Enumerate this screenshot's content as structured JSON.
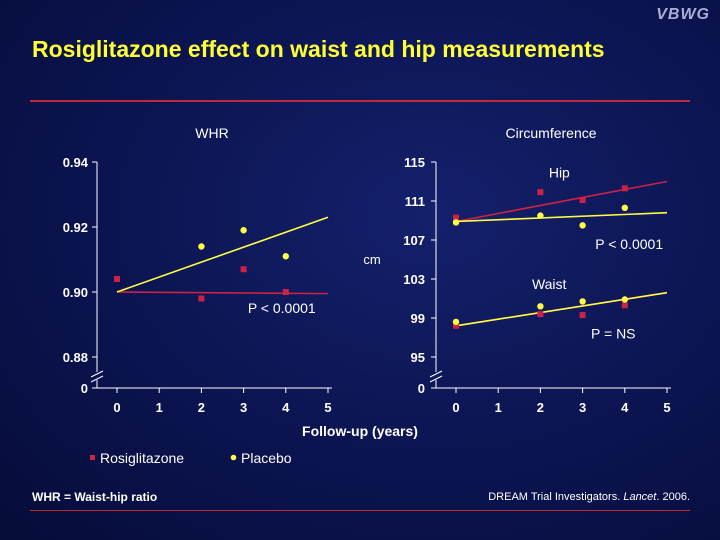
{
  "brand": "VBWG",
  "title": "Rosiglitazone effect on waist and hip measurements",
  "footnote": "WHR = Waist-hip ratio",
  "citation": {
    "authors": "DREAM Trial Investigators. ",
    "journal": "Lancet",
    "year": ". 2006."
  },
  "x_label": "Follow-up (years)",
  "colors": {
    "rosiglitazone": "#cc2244",
    "placebo": "#ffff44"
  },
  "legend": [
    {
      "name": "Rosiglitazone",
      "color": "#cc2244"
    },
    {
      "name": "Placebo",
      "color": "#ffff44"
    }
  ],
  "chart_data": [
    {
      "type": "scatter",
      "title": "WHR",
      "xlabel": "Follow-up (years)",
      "ylabel": "",
      "x_ticks": [
        0,
        1,
        2,
        3,
        4,
        5
      ],
      "y_ticks": [
        "0.94",
        "0.92",
        "0.90",
        "0.88",
        "0"
      ],
      "ylim": [
        0.88,
        0.94
      ],
      "xlim": [
        0,
        5
      ],
      "axis_break": true,
      "series": [
        {
          "name": "Rosiglitazone",
          "points": [
            [
              0,
              0.904
            ],
            [
              2,
              0.898
            ],
            [
              3,
              0.907
            ],
            [
              4,
              0.9
            ]
          ],
          "trend": [
            [
              0,
              0.9
            ],
            [
              5,
              0.8995
            ]
          ]
        },
        {
          "name": "Placebo",
          "points": [
            [
              2,
              0.914
            ],
            [
              3,
              0.919
            ],
            [
              4,
              0.911
            ]
          ],
          "trend": [
            [
              0,
              0.9
            ],
            [
              5,
              0.923
            ]
          ]
        }
      ],
      "annotations": [
        {
          "text": "P < 0.0001",
          "x": 3.1,
          "y": 0.8935
        }
      ]
    },
    {
      "type": "scatter",
      "title": "Circumference",
      "xlabel": "Follow-up (years)",
      "ylabel": "cm",
      "x_ticks": [
        0,
        1,
        2,
        3,
        4,
        5
      ],
      "y_ticks": [
        "115",
        "111",
        "107",
        "103",
        "99",
        "95",
        "0"
      ],
      "ylim": [
        95,
        115
      ],
      "xlim": [
        0,
        5
      ],
      "axis_break": true,
      "series": [
        {
          "name": "Rosiglitazone",
          "group": "Hip",
          "points": [
            [
              0,
              109.3
            ],
            [
              2,
              111.9
            ],
            [
              3,
              111.1
            ],
            [
              4,
              112.3
            ]
          ],
          "trend": [
            [
              0,
              108.9
            ],
            [
              5,
              113.0
            ]
          ]
        },
        {
          "name": "Placebo",
          "group": "Hip",
          "points": [
            [
              0,
              108.8
            ],
            [
              2,
              109.5
            ],
            [
              3,
              108.5
            ],
            [
              4,
              110.3
            ]
          ],
          "trend": [
            [
              0,
              108.9
            ],
            [
              5,
              109.8
            ]
          ]
        },
        {
          "name": "Rosiglitazone",
          "group": "Waist",
          "points": [
            [
              0,
              98.2
            ],
            [
              2,
              99.4
            ],
            [
              3,
              99.3
            ],
            [
              4,
              100.3
            ]
          ],
          "trend": [
            [
              0,
              98.2
            ],
            [
              5,
              101.6
            ]
          ]
        },
        {
          "name": "Placebo",
          "group": "Waist",
          "points": [
            [
              0,
              98.6
            ],
            [
              2,
              100.2
            ],
            [
              3,
              100.7
            ],
            [
              4,
              100.9
            ]
          ],
          "trend": [
            [
              0,
              98.2
            ],
            [
              5,
              101.6
            ]
          ]
        }
      ],
      "annotations": [
        {
          "text": "Hip",
          "x": 2.2,
          "y": 113.4
        },
        {
          "text": "P < 0.0001",
          "x": 3.3,
          "y": 106.1
        },
        {
          "text": "Waist",
          "x": 1.8,
          "y": 102.0
        },
        {
          "text": "P = NS",
          "x": 3.2,
          "y": 96.9
        }
      ]
    }
  ]
}
